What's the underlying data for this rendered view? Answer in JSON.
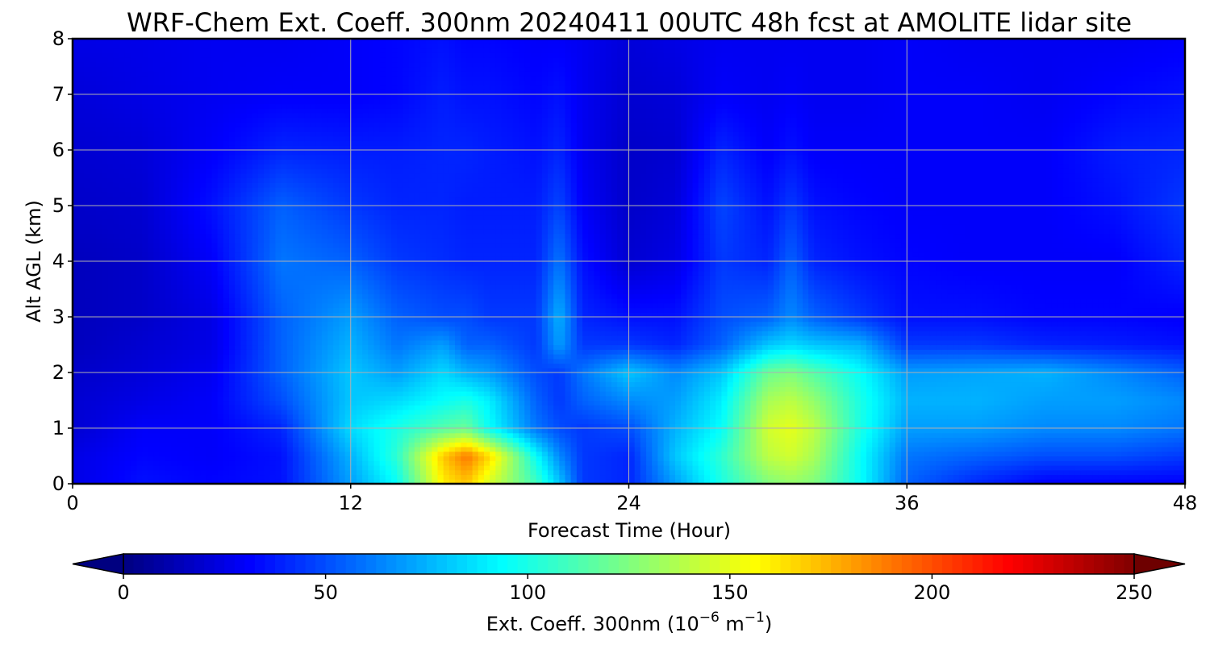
{
  "chart_data": {
    "type": "heatmap",
    "title": "WRF-Chem Ext. Coeff. 300nm  20240411 00UTC 48h fcst at AMOLITE lidar site",
    "xlabel": "Forecast Time (Hour)",
    "ylabel": "Alt AGL (km)",
    "xlim": [
      0,
      48
    ],
    "ylim": [
      0,
      8
    ],
    "x_ticks": [
      0,
      12,
      24,
      36,
      48
    ],
    "y_ticks": [
      0,
      1,
      2,
      3,
      4,
      5,
      6,
      7,
      8
    ],
    "grid": true,
    "colormap": "jet",
    "colorbar": {
      "label_main": "Ext. Coeff. 300nm  (10",
      "label_exp1": "−6",
      "label_mid": " m",
      "label_exp2": "−1",
      "label_end": ")",
      "range": [
        0,
        250
      ],
      "ticks": [
        0,
        50,
        100,
        150,
        200,
        250
      ],
      "extend": "both",
      "placement": "bottom"
    },
    "x": [
      0,
      3,
      6,
      9,
      12,
      14,
      16,
      17,
      18,
      20,
      21,
      22,
      24,
      26,
      28,
      30,
      31,
      32,
      34,
      36,
      39,
      42,
      45,
      48
    ],
    "y": [
      0,
      0.5,
      1,
      1.5,
      2,
      2.5,
      3,
      4,
      5,
      6,
      7,
      8
    ],
    "values": [
      [
        25,
        35,
        32,
        35,
        70,
        95,
        160,
        170,
        145,
        110,
        80,
        45,
        40,
        70,
        100,
        125,
        130,
        125,
        95,
        55,
        40,
        30,
        30,
        30
      ],
      [
        25,
        32,
        30,
        35,
        75,
        105,
        170,
        190,
        165,
        95,
        65,
        45,
        40,
        80,
        105,
        140,
        145,
        135,
        95,
        60,
        55,
        50,
        50,
        45
      ],
      [
        20,
        30,
        30,
        40,
        85,
        100,
        115,
        120,
        95,
        60,
        50,
        45,
        50,
        75,
        95,
        145,
        150,
        140,
        100,
        70,
        70,
        65,
        65,
        60
      ],
      [
        20,
        25,
        30,
        50,
        80,
        85,
        95,
        100,
        90,
        55,
        45,
        55,
        65,
        70,
        90,
        135,
        140,
        130,
        100,
        75,
        75,
        70,
        70,
        65
      ],
      [
        18,
        22,
        28,
        55,
        80,
        70,
        85,
        75,
        70,
        50,
        45,
        60,
        80,
        65,
        80,
        120,
        125,
        115,
        95,
        70,
        72,
        75,
        65,
        55
      ],
      [
        15,
        20,
        25,
        55,
        75,
        60,
        70,
        55,
        55,
        45,
        70,
        45,
        45,
        40,
        55,
        80,
        85,
        80,
        75,
        45,
        45,
        40,
        38,
        35
      ],
      [
        15,
        18,
        25,
        55,
        70,
        55,
        50,
        50,
        45,
        45,
        75,
        40,
        35,
        35,
        50,
        55,
        65,
        55,
        45,
        35,
        35,
        32,
        32,
        30
      ],
      [
        15,
        18,
        30,
        60,
        55,
        45,
        42,
        40,
        40,
        40,
        60,
        35,
        20,
        25,
        45,
        40,
        55,
        40,
        35,
        32,
        30,
        30,
        30,
        40
      ],
      [
        18,
        20,
        35,
        55,
        45,
        40,
        40,
        38,
        38,
        38,
        48,
        30,
        18,
        22,
        48,
        35,
        45,
        35,
        32,
        30,
        30,
        30,
        35,
        45
      ],
      [
        20,
        22,
        30,
        40,
        38,
        38,
        40,
        40,
        38,
        35,
        40,
        28,
        18,
        20,
        40,
        30,
        35,
        30,
        30,
        30,
        30,
        30,
        38,
        40
      ],
      [
        22,
        25,
        28,
        30,
        30,
        32,
        38,
        35,
        35,
        32,
        35,
        28,
        20,
        22,
        30,
        28,
        30,
        28,
        28,
        30,
        30,
        28,
        32,
        35
      ],
      [
        25,
        26,
        28,
        28,
        30,
        32,
        35,
        32,
        32,
        30,
        30,
        28,
        22,
        25,
        28,
        28,
        28,
        28,
        28,
        30,
        28,
        28,
        28,
        30
      ]
    ]
  }
}
